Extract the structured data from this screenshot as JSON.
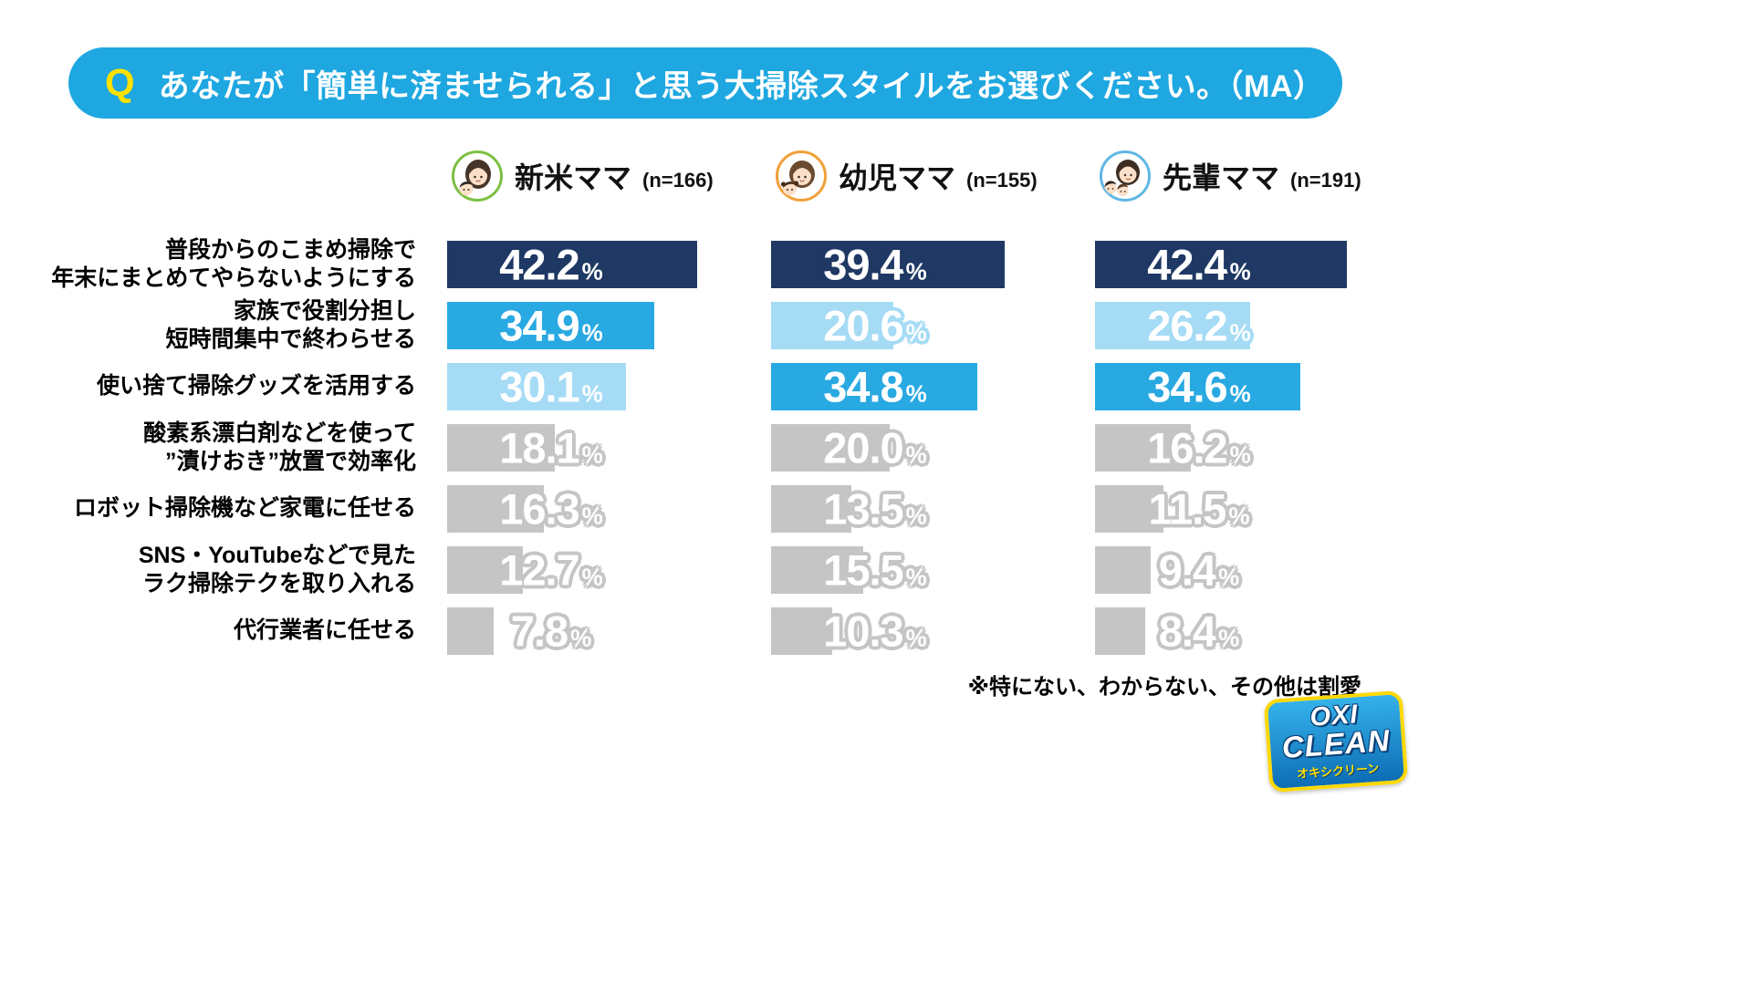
{
  "question": {
    "q_mark": "Q",
    "text": "あなたが「簡単に済ませられる」と思う大掃除スタイルをお選びください。（MA）"
  },
  "groups": [
    {
      "label": "新米ママ",
      "n_label": "(n=166)"
    },
    {
      "label": "幼児ママ",
      "n_label": "(n=155)"
    },
    {
      "label": "先輩ママ",
      "n_label": "(n=191)"
    }
  ],
  "footnote": "※特にない、わからない、その他は割愛",
  "logo": {
    "line1": "OXI",
    "line2": "CLEAN",
    "sub": "オキシクリーン"
  },
  "chart_data": {
    "type": "bar",
    "orientation": "horizontal",
    "title": "あなたが「簡単に済ませられる」と思う大掃除スタイルをお選びください。（MA）",
    "unit": "%",
    "xlim": [
      0,
      45
    ],
    "categories": [
      [
        "普段からのこまめ掃除で",
        "年末にまとめてやらないようにする"
      ],
      [
        "家族で役割分担し",
        "短時間集中で終わらせる"
      ],
      [
        "使い捨て掃除グッズを活用する"
      ],
      [
        "酸素系漂白剤などを使って",
        "”漬けおき”放置で効率化"
      ],
      [
        "ロボット掃除機など家電に任せる"
      ],
      [
        "SNS・YouTubeなどで見た",
        "ラク掃除テクを取り入れる"
      ],
      [
        "代行業者に任せる"
      ]
    ],
    "series": [
      {
        "name": "新米ママ",
        "n": 166,
        "values": [
          42.2,
          34.9,
          30.1,
          18.1,
          16.3,
          12.7,
          7.8
        ]
      },
      {
        "name": "幼児ママ",
        "n": 155,
        "values": [
          39.4,
          20.6,
          34.8,
          20.0,
          13.5,
          15.5,
          10.3
        ]
      },
      {
        "name": "先輩ママ",
        "n": 191,
        "values": [
          42.4,
          26.2,
          34.6,
          16.2,
          11.5,
          9.4,
          8.4
        ]
      }
    ],
    "rank_colors": {
      "rank1": "#1f3864",
      "rank2": "#29a9e2",
      "rank3": "#a5dbf5",
      "other": "#c5c5c5"
    },
    "legend_note": "bars colored by rank within each group: 1st navy, 2nd blue, 3rd light blue, others gray",
    "footnote": "※特にない、わからない、その他は割愛"
  }
}
